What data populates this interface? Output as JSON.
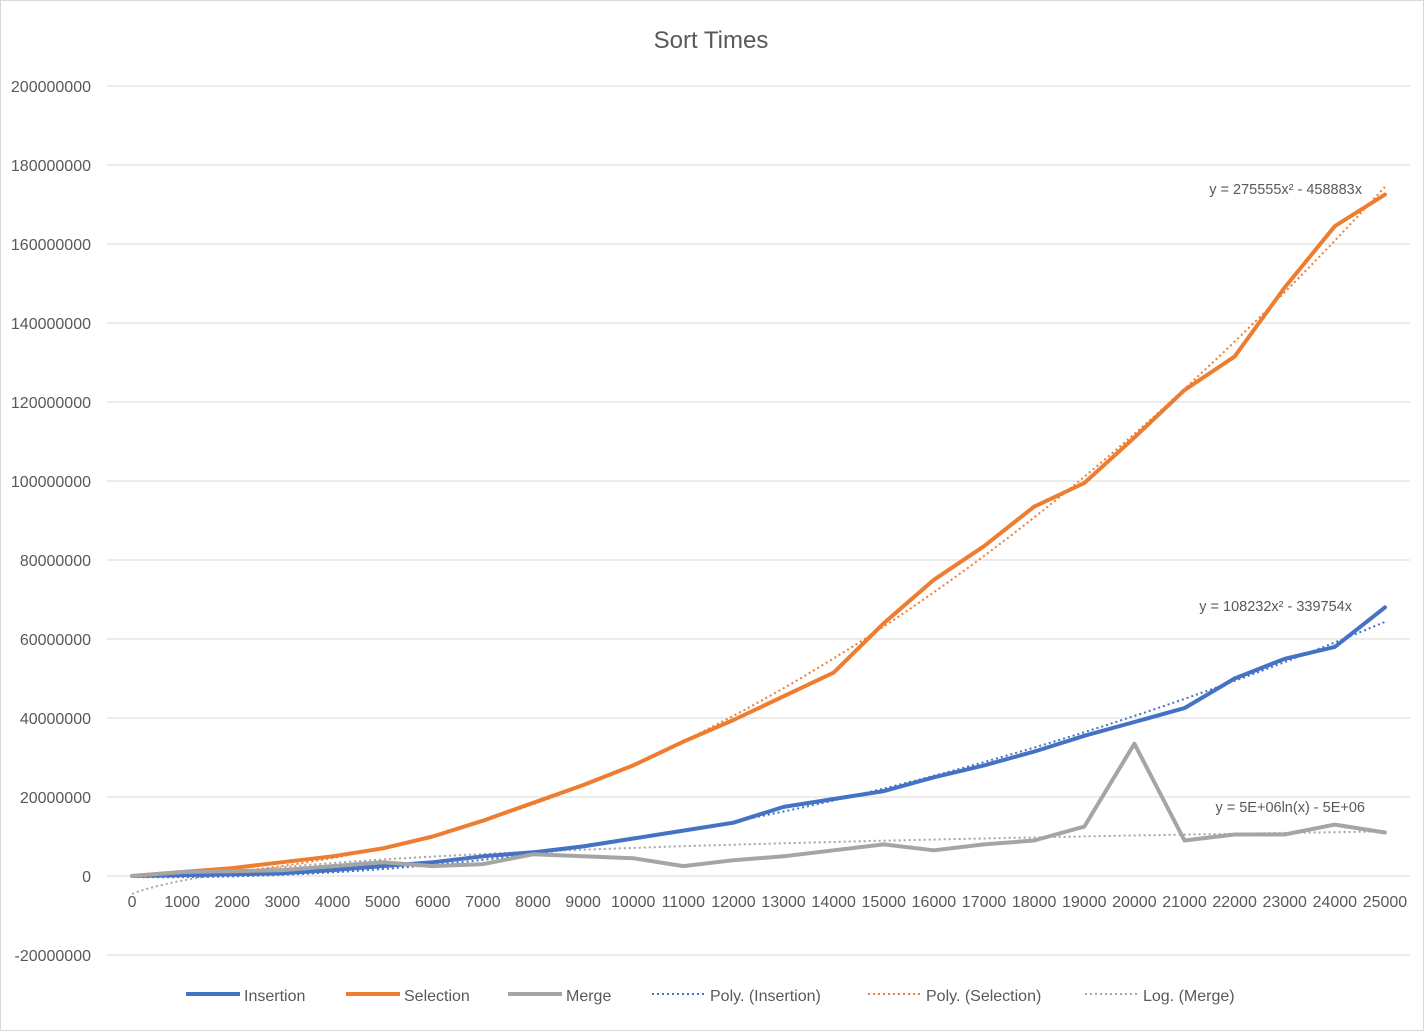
{
  "chart_data": {
    "type": "line",
    "title": "Sort Times",
    "xlabel": "",
    "ylabel": "",
    "categories": [
      "0",
      "1000",
      "2000",
      "3000",
      "4000",
      "5000",
      "6000",
      "7000",
      "8000",
      "9000",
      "10000",
      "11000",
      "12000",
      "13000",
      "14000",
      "15000",
      "16000",
      "17000",
      "18000",
      "19000",
      "20000",
      "21000",
      "22000",
      "23000",
      "24000",
      "25000"
    ],
    "ylim": [
      -20000000,
      200000000
    ],
    "yticks": [
      "-20000000",
      "0",
      "20000000",
      "40000000",
      "60000000",
      "80000000",
      "100000000",
      "120000000",
      "140000000",
      "160000000",
      "180000000",
      "200000000"
    ],
    "grid": true,
    "legend_position": "bottom",
    "series": [
      {
        "name": "Insertion",
        "color": "#4472C4",
        "style": "solid",
        "values": [
          0,
          200000,
          400000,
          700000,
          1500000,
          2500000,
          3500000,
          5000000,
          6000000,
          7500000,
          9500000,
          11500000,
          13500000,
          17500000,
          19500000,
          21500000,
          25000000,
          28000000,
          31500000,
          35500000,
          39000000,
          42500000,
          50000000,
          55000000,
          58000000,
          68000000
        ]
      },
      {
        "name": "Selection",
        "color": "#ED7D31",
        "style": "solid",
        "values": [
          0,
          1000000,
          2000000,
          3500000,
          5000000,
          7000000,
          10000000,
          14000000,
          18500000,
          23000000,
          28000000,
          34000000,
          39500000,
          45500000,
          51500000,
          64000000,
          75000000,
          83500000,
          93500000,
          99500000,
          111000000,
          123000000,
          131500000,
          149000000,
          164500000,
          172500000
        ]
      },
      {
        "name": "Merge",
        "color": "#A5A5A5",
        "style": "solid",
        "values": [
          0,
          1000000,
          1200000,
          1500000,
          2500000,
          3500000,
          2500000,
          3000000,
          5500000,
          5000000,
          4500000,
          2500000,
          4000000,
          5000000,
          6500000,
          8000000,
          6500000,
          8000000,
          9000000,
          12500000,
          33500000,
          9000000,
          10500000,
          10500000,
          13000000,
          11000000
        ]
      },
      {
        "name": "Poly. (Insertion)",
        "color": "#4472C4",
        "style": "dotted",
        "equation": "y = 108232x² - 339754x",
        "trend_of": "Insertion"
      },
      {
        "name": "Poly. (Selection)",
        "color": "#ED7D31",
        "style": "dotted",
        "equation": "y = 275555x² - 458883x",
        "trend_of": "Selection"
      },
      {
        "name": "Log. (Merge)",
        "color": "#A5A5A5",
        "style": "dotted",
        "equation": "y = 5E+06ln(x) - 5E+06",
        "trend_of": "Merge"
      }
    ]
  }
}
